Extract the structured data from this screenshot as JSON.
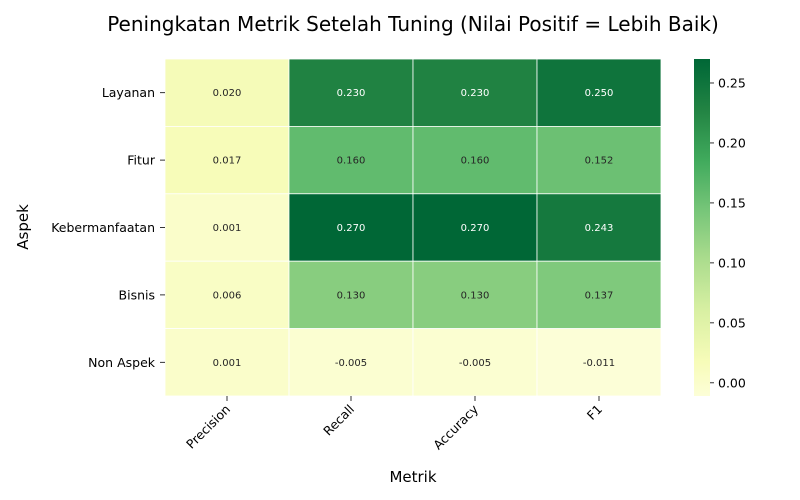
{
  "chart_data": {
    "type": "heatmap",
    "title": "Peningkatan Metrik Setelah Tuning (Nilai Positif = Lebih Baik)",
    "xlabel": "Metrik",
    "ylabel": "Aspek",
    "columns": [
      "Precision",
      "Recall",
      "Accuracy",
      "F1"
    ],
    "rows": [
      "Layanan",
      "Fitur",
      "Kebermanfaatan",
      "Bisnis",
      "Non Aspek"
    ],
    "values": [
      [
        0.02,
        0.23,
        0.23,
        0.25
      ],
      [
        0.017,
        0.16,
        0.16,
        0.152
      ],
      [
        0.001,
        0.27,
        0.27,
        0.243
      ],
      [
        0.006,
        0.13,
        0.13,
        0.137
      ],
      [
        0.001,
        -0.005,
        -0.005,
        -0.011
      ]
    ],
    "cell_labels": [
      [
        "0.020",
        "0.230",
        "0.230",
        "0.250"
      ],
      [
        "0.017",
        "0.160",
        "0.160",
        "0.152"
      ],
      [
        "0.001",
        "0.270",
        "0.270",
        "0.243"
      ],
      [
        "0.006",
        "0.130",
        "0.130",
        "0.137"
      ],
      [
        "0.001",
        "-0.005",
        "-0.005",
        "-0.011"
      ]
    ],
    "colormap": "YlGn",
    "vmin": -0.011,
    "vmax": 0.27,
    "colorbar_ticks": [
      0.0,
      0.05,
      0.1,
      0.15,
      0.2,
      0.25
    ],
    "colorbar_tick_labels": [
      "0.00",
      "0.05",
      "0.10",
      "0.15",
      "0.20",
      "0.25"
    ]
  }
}
